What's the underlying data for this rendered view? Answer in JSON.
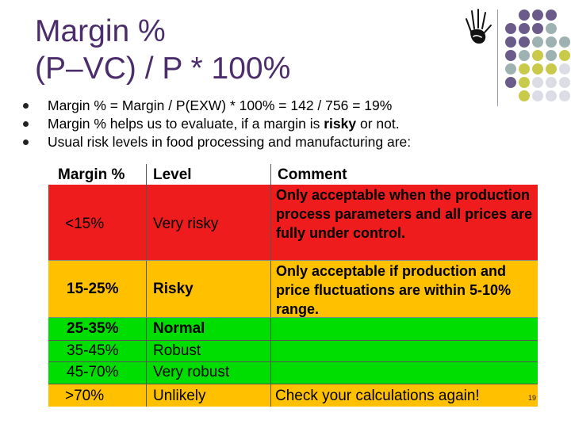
{
  "title": {
    "line1": "Margin %",
    "line2": "(P–VC) / P * 100%"
  },
  "decor": {
    "hand": "hand-icon",
    "dot_colors": [
      "#6b5b8a",
      "#9fb2b2",
      "#c9c94a",
      "#dcdce6"
    ]
  },
  "bullets": [
    {
      "pre": "Margin % = Margin / P(EXW) * 100% = 142 / 756 = 19%",
      "bold": "",
      "post": ""
    },
    {
      "pre": "Margin % helps us to evaluate, if a margin is ",
      "bold": "risky",
      "post": " or not."
    },
    {
      "pre": "Usual risk levels in food processing and manufacturing are:",
      "bold": "",
      "post": ""
    }
  ],
  "table": {
    "headers": [
      "Margin %",
      "Level",
      "Comment"
    ],
    "rows": [
      {
        "margin": "<15%",
        "level": "Very risky",
        "comment": "Only acceptable when the production process parameters and all prices are fully under control.",
        "color": "#ee1c1c"
      },
      {
        "margin": "15-25%",
        "level": "Risky",
        "comment": "Only acceptable if production and price fluctuations are within 5-10% range.",
        "color": "#ffc000"
      },
      {
        "margin": "25-35%",
        "level": "Normal",
        "comment": "",
        "color": "#00dd00"
      },
      {
        "margin": "35-45%",
        "level": "Robust",
        "comment": "",
        "color": "#00dd00"
      },
      {
        "margin": "45-70%",
        "level": "Very robust",
        "comment": "",
        "color": "#00dd00"
      },
      {
        "margin": ">70%",
        "level": "Unlikely",
        "comment": "Check your calculations again!",
        "color": "#ffc000"
      }
    ]
  },
  "page_number": "19"
}
